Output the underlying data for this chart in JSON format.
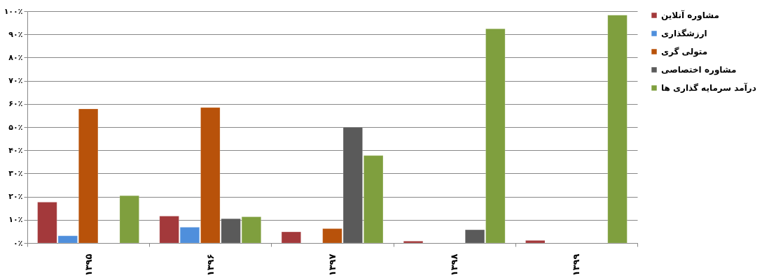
{
  "chart_data": {
    "type": "bar",
    "categories": [
      "۱۳۹۵",
      "۱۳۹۶",
      "۱۳۹۷",
      "۱۳۹۸",
      "۱۳۹۹"
    ],
    "series": [
      {
        "name": "مشاوره آنلاین",
        "color": "#a3393b",
        "values": [
          17.6,
          11.6,
          4.8,
          0.8,
          1.1
        ]
      },
      {
        "name": "ارزشگذاری",
        "color": "#4f8fdc",
        "values": [
          3.1,
          6.8,
          null,
          null,
          null
        ]
      },
      {
        "name": "متولی گری",
        "color": "#b8520a",
        "values": [
          57.8,
          58.4,
          6.2,
          null,
          null
        ]
      },
      {
        "name": "مشاوره اختصاصی",
        "color": "#5a5a5a",
        "values": [
          null,
          10.5,
          49.9,
          5.7,
          null
        ]
      },
      {
        "name": "درآمد سرمایه گذاری ها",
        "color": "#7f9f3e",
        "values": [
          20.4,
          11.3,
          37.7,
          92.4,
          98.3
        ]
      }
    ],
    "ylim": [
      0,
      100
    ],
    "yticks": [
      {
        "value": 0,
        "label": "۰٪"
      },
      {
        "value": 10,
        "label": "۱۰٪"
      },
      {
        "value": 20,
        "label": "۲۰٪"
      },
      {
        "value": 30,
        "label": "۳۰٪"
      },
      {
        "value": 40,
        "label": "۴۰٪"
      },
      {
        "value": 50,
        "label": "۵۰٪"
      },
      {
        "value": 60,
        "label": "۶۰٪"
      },
      {
        "value": 70,
        "label": "۷۰٪"
      },
      {
        "value": 80,
        "label": "۸۰٪"
      },
      {
        "value": 90,
        "label": "۹۰٪"
      },
      {
        "value": 100,
        "label": "۱۰۰٪"
      }
    ],
    "grid": "y",
    "legend": "right"
  }
}
